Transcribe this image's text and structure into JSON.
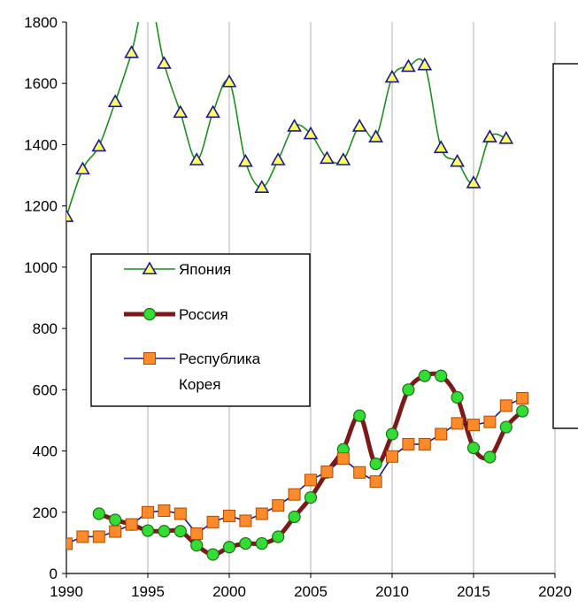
{
  "chart_data": {
    "type": "line",
    "title": "",
    "xlabel": "",
    "ylabel": "",
    "xlim": [
      1990,
      2020
    ],
    "ylim": [
      0,
      1800
    ],
    "x_ticks": [
      "1990",
      "1995",
      "2000",
      "2005",
      "2010",
      "2015",
      "2020"
    ],
    "y_ticks": [
      "0",
      "200",
      "400",
      "600",
      "800",
      "1000",
      "1200",
      "1400",
      "1600",
      "1800"
    ],
    "grid": "vertical",
    "legend_placement": "left-middle",
    "series": [
      {
        "name": "Япония",
        "color": "#228B22",
        "marker": "triangle",
        "x": [
          1990,
          1991,
          1992,
          1993,
          1994,
          1995,
          1996,
          1997,
          1998,
          1999,
          2000,
          2001,
          2002,
          2003,
          2004,
          2005,
          2006,
          2007,
          2008,
          2009,
          2010,
          2011,
          2012,
          2013,
          2014,
          2015,
          2016,
          2017
        ],
        "y": [
          1165,
          1320,
          1395,
          1540,
          1700,
          1895,
          1665,
          1505,
          1350,
          1505,
          1605,
          1345,
          1260,
          1350,
          1460,
          1435,
          1355,
          1350,
          1460,
          1425,
          1620,
          1655,
          1660,
          1390,
          1345,
          1275,
          1425,
          1420
        ]
      },
      {
        "name": "Россия",
        "color": "#7B1A1A",
        "marker": "circle",
        "x": [
          1992,
          1993,
          1994,
          1995,
          1996,
          1997,
          1998,
          1999,
          2000,
          2001,
          2002,
          2003,
          2004,
          2005,
          2006,
          2007,
          2008,
          2009,
          2010,
          2011,
          2012,
          2013,
          2014,
          2015,
          2016,
          2017,
          2018
        ],
        "y": [
          195,
          175,
          160,
          140,
          138,
          138,
          92,
          62,
          86,
          98,
          98,
          120,
          185,
          248,
          330,
          405,
          515,
          358,
          455,
          600,
          645,
          645,
          575,
          410,
          380,
          478,
          530
        ]
      },
      {
        "name": "Республика Корея",
        "color": "#1A1A8C",
        "marker": "square",
        "x": [
          1990,
          1991,
          1992,
          1993,
          1994,
          1995,
          1996,
          1997,
          1998,
          1999,
          2000,
          2001,
          2002,
          2003,
          2004,
          2005,
          2006,
          2007,
          2008,
          2009,
          2010,
          2011,
          2012,
          2013,
          2014,
          2015,
          2016,
          2017,
          2018
        ],
        "y": [
          97,
          120,
          120,
          137,
          160,
          200,
          205,
          195,
          130,
          168,
          188,
          172,
          195,
          222,
          258,
          305,
          332,
          375,
          330,
          300,
          382,
          422,
          422,
          455,
          490,
          485,
          495,
          548,
          572
        ]
      }
    ],
    "legend": [
      {
        "label": "Япония",
        "lines": [
          "Япония"
        ]
      },
      {
        "label": "Россия",
        "lines": [
          "Россия"
        ]
      },
      {
        "label": "Республика Корея",
        "lines": [
          "Республика",
          "Корея"
        ]
      }
    ]
  }
}
